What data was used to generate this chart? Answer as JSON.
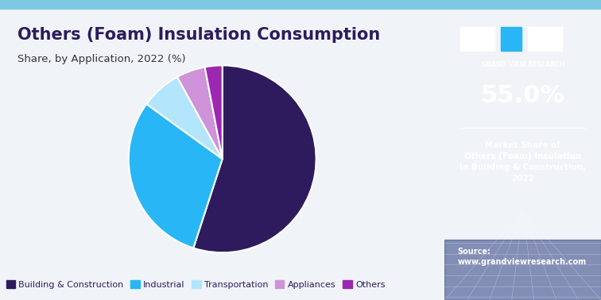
{
  "title": "Others (Foam) Insulation Consumption",
  "subtitle": "Share, by Application, 2022 (%)",
  "slices": [
    55.0,
    30.0,
    7.0,
    5.0,
    3.0
  ],
  "labels": [
    "Building & Construction",
    "Industrial",
    "Transportation",
    "Appliances",
    "Others"
  ],
  "colors": [
    "#2d1b5e",
    "#29b6f6",
    "#b3e5fc",
    "#ce93d8",
    "#9c27b0"
  ],
  "startangle": 90,
  "sidebar_bg": "#2d1b5e",
  "sidebar_text_color": "#ffffff",
  "sidebar_percentage": "55.0%",
  "sidebar_description": "Market Share of\nOthers (Foam) Insulation\nIn Building & Construction,\n2022",
  "sidebar_source": "Source:\nwww.grandviewresearch.com",
  "main_bg": "#f0f4f8",
  "top_bar_color": "#7ec8e3",
  "title_color": "#2d1b5e",
  "subtitle_color": "#333333",
  "figsize": [
    7.56,
    3.78
  ]
}
